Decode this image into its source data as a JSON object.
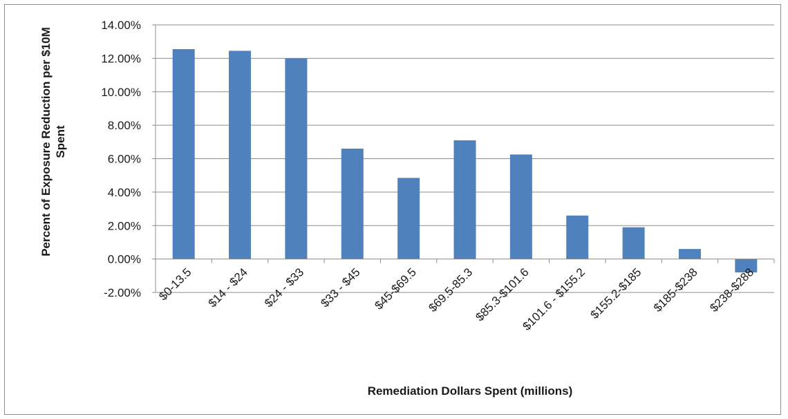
{
  "chart_data": {
    "type": "bar",
    "title": "",
    "xlabel": "Remediation Dollars Spent (millions)",
    "ylabel_lines": [
      "Percent of Exposure Reduction per $10M",
      "Spent"
    ],
    "categories": [
      "$0-13.5",
      "$14 - $24",
      "$24 - $33",
      "$33 - $45",
      "$45-$69.5",
      "$69.5-85.3",
      "$85.3-$101.6",
      "$101.6 - $155.2",
      "$155.2-$185",
      "$185-$238",
      "$238-$288"
    ],
    "values": [
      12.55,
      12.45,
      12.0,
      6.6,
      4.85,
      7.1,
      6.25,
      2.6,
      1.9,
      0.6,
      -0.8
    ],
    "ylim": [
      -2,
      14
    ],
    "yticks": [
      -2,
      0,
      2,
      4,
      6,
      8,
      10,
      12,
      14
    ],
    "ytick_labels": [
      "-2.00%",
      "0.00%",
      "2.00%",
      "4.00%",
      "6.00%",
      "8.00%",
      "10.00%",
      "12.00%",
      "14.00%"
    ],
    "grid": true,
    "bar_color": "#4f81bd",
    "grid_color": "#8c8c8c"
  }
}
